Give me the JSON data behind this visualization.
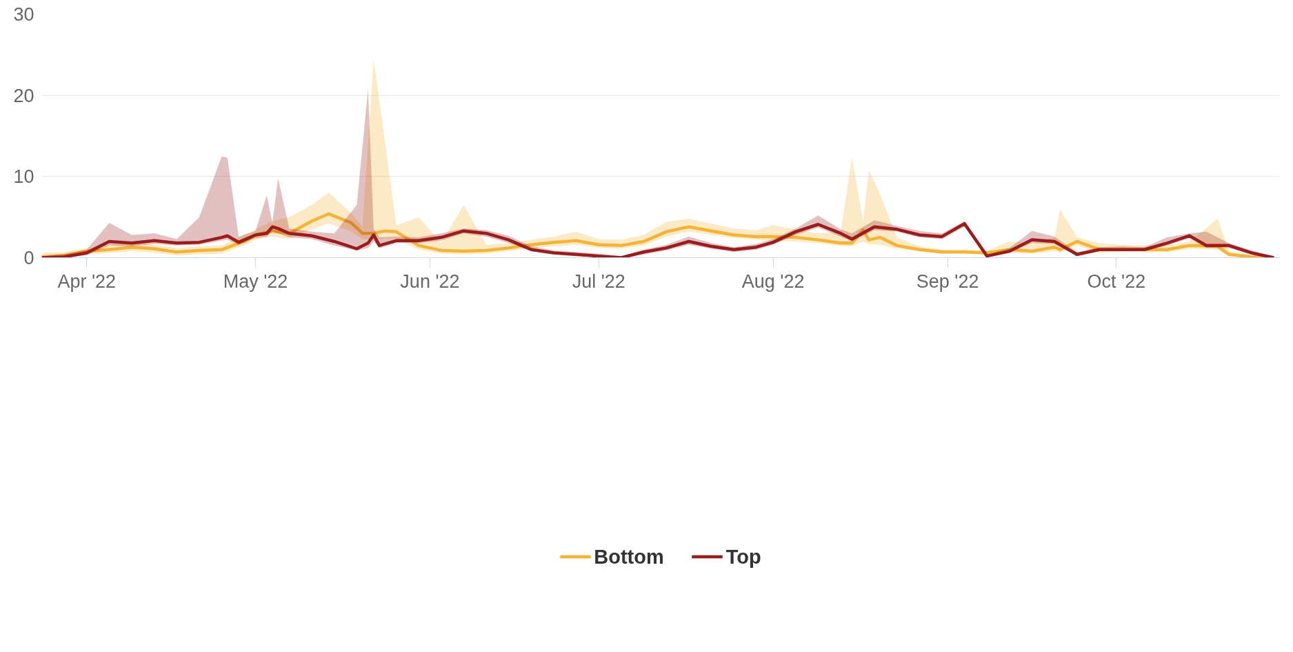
{
  "chart_data": {
    "type": "line",
    "xlim": [
      "2022-03-24",
      "2022-10-30"
    ],
    "xticks": [
      {
        "value": "2022-04-01",
        "label": "Apr '22"
      },
      {
        "value": "2022-05-01",
        "label": "May '22"
      },
      {
        "value": "2022-06-01",
        "label": "Jun '22"
      },
      {
        "value": "2022-07-01",
        "label": "Jul '22"
      },
      {
        "value": "2022-08-01",
        "label": "Aug '22"
      },
      {
        "value": "2022-09-01",
        "label": "Sep '22"
      },
      {
        "value": "2022-10-01",
        "label": "Oct '22"
      }
    ],
    "ylim": [
      0,
      30
    ],
    "yticks": [
      0,
      10,
      20,
      30
    ],
    "grid": "y",
    "legend": "bottom",
    "line_style": "solid",
    "series": [
      {
        "name": "Bottom",
        "color": "#f5b335",
        "x": [
          "2022-03-24",
          "2022-03-28",
          "2022-04-01",
          "2022-04-05",
          "2022-04-09",
          "2022-04-13",
          "2022-04-17",
          "2022-04-21",
          "2022-04-25",
          "2022-04-29",
          "2022-05-01",
          "2022-05-04",
          "2022-05-07",
          "2022-05-11",
          "2022-05-14",
          "2022-05-18",
          "2022-05-20",
          "2022-05-22",
          "2022-05-24",
          "2022-05-26",
          "2022-05-30",
          "2022-06-03",
          "2022-06-07",
          "2022-06-11",
          "2022-06-15",
          "2022-06-19",
          "2022-06-23",
          "2022-06-27",
          "2022-07-01",
          "2022-07-05",
          "2022-07-09",
          "2022-07-13",
          "2022-07-17",
          "2022-07-21",
          "2022-07-25",
          "2022-07-29",
          "2022-08-01",
          "2022-08-05",
          "2022-08-09",
          "2022-08-13",
          "2022-08-15",
          "2022-08-17",
          "2022-08-18",
          "2022-08-20",
          "2022-08-23",
          "2022-08-27",
          "2022-08-31",
          "2022-09-04",
          "2022-09-08",
          "2022-09-12",
          "2022-09-16",
          "2022-09-20",
          "2022-09-21",
          "2022-09-24",
          "2022-09-28",
          "2022-10-02",
          "2022-10-06",
          "2022-10-10",
          "2022-10-14",
          "2022-10-19",
          "2022-10-21",
          "2022-10-25",
          "2022-10-29"
        ],
        "values": [
          0.1,
          0.3,
          0.8,
          1.0,
          1.3,
          1.1,
          0.7,
          0.9,
          1.0,
          2.0,
          2.8,
          3.3,
          3.0,
          4.5,
          5.4,
          4.3,
          3.0,
          3.0,
          3.3,
          3.2,
          1.5,
          0.9,
          0.8,
          0.9,
          1.2,
          1.6,
          1.9,
          2.1,
          1.6,
          1.5,
          2.0,
          3.2,
          3.8,
          3.3,
          2.8,
          2.6,
          2.6,
          2.5,
          2.2,
          1.8,
          1.8,
          3.4,
          2.2,
          2.5,
          1.5,
          1.0,
          0.7,
          0.7,
          0.6,
          1.0,
          0.8,
          1.3,
          1.0,
          2.0,
          1.0,
          1.0,
          1.0,
          1.0,
          1.5,
          1.4,
          0.4,
          0.1,
          0
        ],
        "lower": [
          0,
          0.1,
          0.4,
          0.6,
          0.8,
          0.6,
          0.3,
          0.4,
          0.5,
          1.5,
          2.2,
          2.6,
          2.3,
          3.5,
          4.2,
          3.2,
          2.3,
          2.2,
          2.4,
          2.3,
          1.0,
          0.5,
          0.4,
          0.5,
          0.8,
          1.2,
          1.4,
          1.6,
          1.2,
          1.1,
          1.5,
          2.6,
          3.2,
          2.8,
          2.4,
          2.2,
          2.1,
          2.0,
          1.8,
          1.4,
          1.4,
          2.0,
          1.6,
          1.6,
          1.1,
          0.8,
          0.5,
          0.5,
          0.4,
          0.6,
          0.5,
          0.8,
          0.6,
          1.5,
          0.6,
          0.7,
          0.7,
          0.7,
          1.1,
          1.0,
          0.2,
          0,
          0
        ],
        "upper": [
          0.6,
          0.7,
          1.2,
          1.6,
          1.9,
          1.6,
          1.2,
          1.4,
          1.5,
          2.8,
          3.5,
          4.5,
          5.0,
          6.5,
          8.0,
          5.5,
          3.8,
          24.5,
          14.3,
          4.0,
          5.0,
          1.8,
          6.5,
          1.6,
          1.8,
          2.2,
          2.6,
          3.2,
          2.3,
          2.2,
          2.8,
          4.4,
          4.8,
          4.2,
          3.6,
          3.4,
          4.0,
          3.5,
          3.0,
          3.2,
          12.3,
          4.5,
          10.8,
          7.8,
          2.5,
          1.4,
          1.0,
          1.0,
          0.9,
          2.0,
          1.8,
          2.5,
          6.0,
          2.5,
          1.8,
          1.6,
          1.5,
          1.5,
          2.0,
          4.8,
          0.8,
          0.4,
          0.1
        ]
      },
      {
        "name": "Top",
        "color": "#9b1c1c",
        "x": [
          "2022-03-24",
          "2022-03-28",
          "2022-04-01",
          "2022-04-05",
          "2022-04-09",
          "2022-04-13",
          "2022-04-17",
          "2022-04-21",
          "2022-04-25",
          "2022-04-26",
          "2022-04-28",
          "2022-05-01",
          "2022-05-03",
          "2022-05-04",
          "2022-05-05",
          "2022-05-07",
          "2022-05-11",
          "2022-05-15",
          "2022-05-19",
          "2022-05-21",
          "2022-05-22",
          "2022-05-23",
          "2022-05-26",
          "2022-05-30",
          "2022-06-03",
          "2022-06-07",
          "2022-06-11",
          "2022-06-15",
          "2022-06-19",
          "2022-06-23",
          "2022-06-27",
          "2022-07-01",
          "2022-07-05",
          "2022-07-09",
          "2022-07-13",
          "2022-07-17",
          "2022-07-21",
          "2022-07-25",
          "2022-07-29",
          "2022-08-01",
          "2022-08-05",
          "2022-08-09",
          "2022-08-13",
          "2022-08-15",
          "2022-08-19",
          "2022-08-23",
          "2022-08-27",
          "2022-08-31",
          "2022-09-04",
          "2022-09-08",
          "2022-09-12",
          "2022-09-16",
          "2022-09-20",
          "2022-09-24",
          "2022-09-28",
          "2022-10-02",
          "2022-10-06",
          "2022-10-10",
          "2022-10-14",
          "2022-10-17",
          "2022-10-21",
          "2022-10-25",
          "2022-10-29"
        ],
        "values": [
          0,
          0.1,
          0.6,
          2.0,
          1.8,
          2.1,
          1.8,
          1.9,
          2.5,
          2.7,
          1.9,
          2.8,
          3.0,
          3.8,
          3.6,
          3.0,
          2.7,
          2.0,
          1.1,
          1.8,
          2.8,
          1.5,
          2.1,
          2.1,
          2.5,
          3.3,
          3.0,
          2.2,
          1.0,
          0.6,
          0.4,
          0.2,
          0.0,
          0.7,
          1.2,
          2.0,
          1.4,
          1.0,
          1.3,
          1.9,
          3.2,
          4.1,
          3.0,
          2.3,
          3.8,
          3.5,
          2.8,
          2.6,
          4.2,
          0.2,
          0.8,
          2.2,
          2.0,
          0.4,
          1.0,
          1.0,
          1.0,
          1.8,
          2.7,
          1.5,
          1.5,
          0.6,
          0
        ],
        "lower": [
          0,
          0,
          0.3,
          1.5,
          1.4,
          1.7,
          1.5,
          1.6,
          2.1,
          2.2,
          1.6,
          2.4,
          2.6,
          3.2,
          3.0,
          2.5,
          2.3,
          1.5,
          0.9,
          1.2,
          2.0,
          1.2,
          1.8,
          1.8,
          2.1,
          3.0,
          2.6,
          1.8,
          0.8,
          0.4,
          0.2,
          0.1,
          0,
          0.4,
          0.9,
          1.6,
          1.1,
          0.7,
          1.0,
          1.6,
          2.8,
          3.7,
          2.6,
          2.0,
          3.4,
          3.2,
          2.5,
          2.3,
          3.8,
          0.1,
          0.6,
          1.8,
          1.7,
          0.2,
          0.8,
          0.8,
          0.8,
          1.5,
          2.4,
          1.2,
          1.2,
          0.4,
          0
        ],
        "upper": [
          0.2,
          0.4,
          1.0,
          4.3,
          2.8,
          3.0,
          2.3,
          5.0,
          12.5,
          12.3,
          2.6,
          3.3,
          7.7,
          4.3,
          9.8,
          3.6,
          3.2,
          3.0,
          6.5,
          20.8,
          3.5,
          2.5,
          2.6,
          2.5,
          3.0,
          3.6,
          3.4,
          2.7,
          1.4,
          0.9,
          0.7,
          0.5,
          0.2,
          1.0,
          1.6,
          2.6,
          1.8,
          1.3,
          1.7,
          2.3,
          3.6,
          5.2,
          3.5,
          3.0,
          4.6,
          3.9,
          3.3,
          3.0,
          4.5,
          0.4,
          1.2,
          3.3,
          2.6,
          0.7,
          1.3,
          1.4,
          1.3,
          2.5,
          3.0,
          3.2,
          1.8,
          0.9,
          0.1
        ]
      }
    ]
  }
}
